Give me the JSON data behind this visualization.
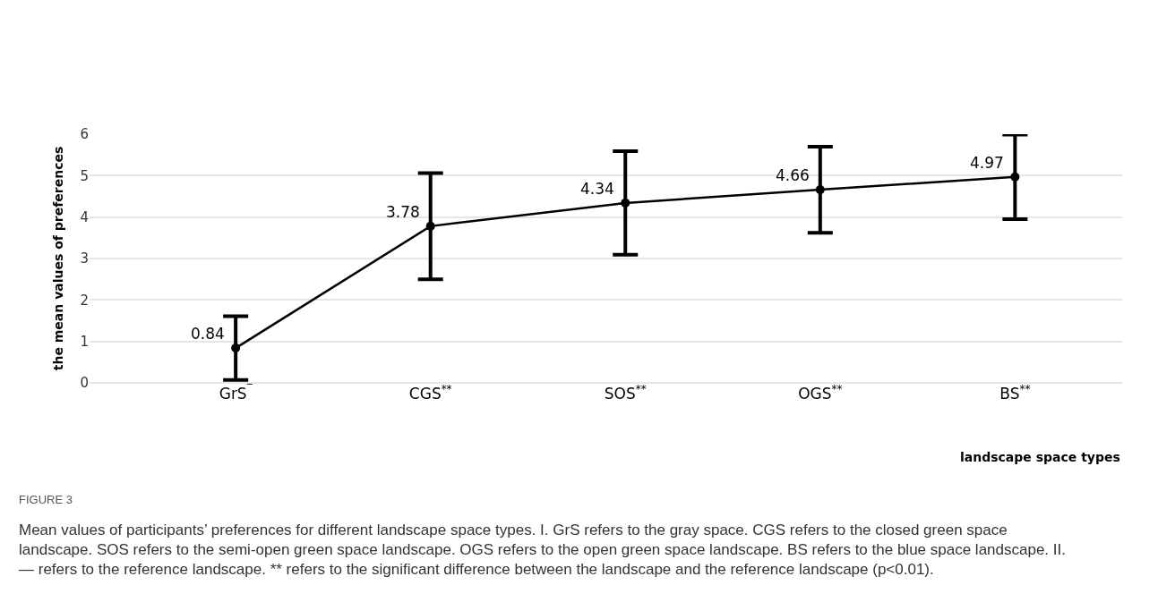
{
  "chart_data": {
    "type": "line",
    "ylabel": "the mean values of preferences",
    "xlabel": "landscape space types",
    "categories": [
      "GrS$^{‾}$",
      "CGS$^{**}$",
      "SOS$^{**}$",
      "OGS$^{**}$",
      "BS$^{**}$"
    ],
    "series": [
      {
        "color": "#000000",
        "values": [
          0.84,
          3.78,
          4.34,
          4.66,
          4.97
        ],
        "errors": [
          0.77,
          1.28,
          1.25,
          1.04,
          1.02
        ],
        "value_labels": [
          "0.84",
          "3.78",
          "4.34",
          "4.66",
          "4.97"
        ]
      }
    ],
    "ylim": [
      0,
      6
    ],
    "yticks": [
      0,
      1,
      2,
      3,
      4,
      5,
      6
    ],
    "grid": "y",
    "marker": "circle",
    "line_style": "solid",
    "annotations": [
      "FIGURE 3",
      "Mean values of participants’ preferences for different landscape space types. I. GrS refers to the gray space. CGS refers to the closed green space landscape. SOS refers to the semi-open green space landscape. OGS refers to the open green space landscape. BS refers to the blue space landscape. II. — refers to the reference landscape. ** refers to the significant difference between the landscape and the reference landscape (p<0.01)."
    ]
  }
}
